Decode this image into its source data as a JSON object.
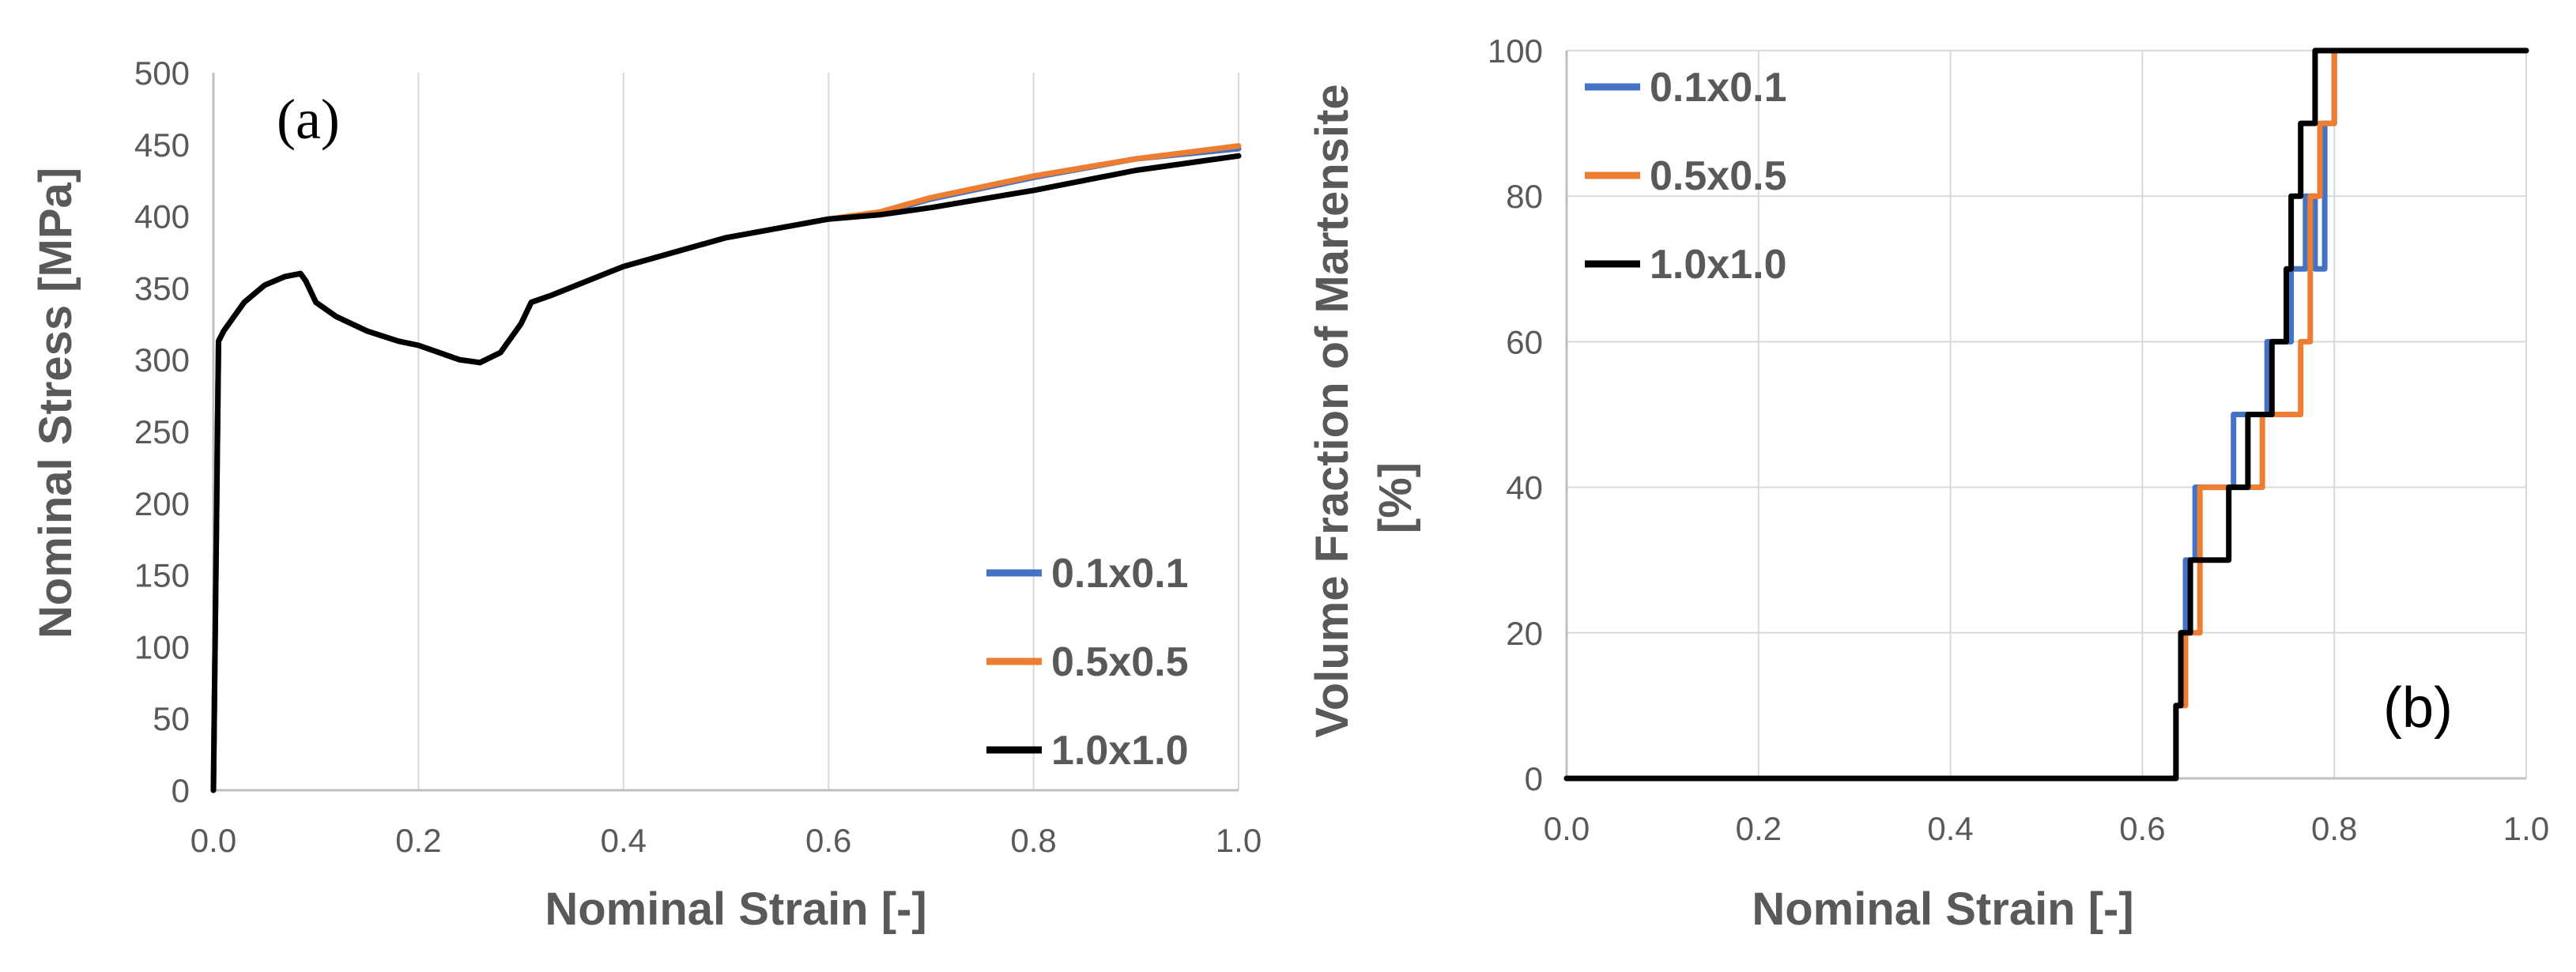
{
  "chart_data": [
    {
      "type": "line",
      "panel_label": "(a)",
      "xlabel": "Nominal Strain [-]",
      "ylabel": "Nominal Stress [MPa]",
      "xlim": [
        0,
        1.0
      ],
      "ylim": [
        0,
        500
      ],
      "xticks": [
        0,
        0.2,
        0.4,
        0.6,
        0.8,
        1.0
      ],
      "xtick_labels": [
        "0.0",
        "0.2",
        "0.4",
        "0.6",
        "0.8",
        "1.0"
      ],
      "yticks": [
        0,
        50,
        100,
        150,
        200,
        250,
        300,
        350,
        400,
        450,
        500
      ],
      "ytick_labels": [
        "0",
        "50",
        "100",
        "150",
        "200",
        "250",
        "300",
        "350",
        "400",
        "450",
        "500"
      ],
      "grid": "vertical",
      "legend_position": "bottom-right",
      "series": [
        {
          "name": "0.1x0.1",
          "color": "#4472c4",
          "x": [
            0,
            0.005,
            0.01,
            0.03,
            0.05,
            0.07,
            0.085,
            0.09,
            0.1,
            0.12,
            0.15,
            0.18,
            0.2,
            0.22,
            0.24,
            0.26,
            0.28,
            0.3,
            0.31,
            0.33,
            0.4,
            0.5,
            0.6,
            0.65,
            0.7,
            0.8,
            0.9,
            1.0
          ],
          "y": [
            0,
            313,
            320,
            340,
            352,
            358,
            360,
            355,
            340,
            330,
            320,
            313,
            310,
            305,
            300,
            298,
            305,
            325,
            340,
            345,
            365,
            385,
            398,
            402,
            412,
            427,
            440,
            447
          ]
        },
        {
          "name": "0.5x0.5",
          "color": "#ed7d31",
          "x": [
            0,
            0.005,
            0.01,
            0.03,
            0.05,
            0.07,
            0.085,
            0.09,
            0.1,
            0.12,
            0.15,
            0.18,
            0.2,
            0.22,
            0.24,
            0.26,
            0.28,
            0.3,
            0.31,
            0.33,
            0.4,
            0.5,
            0.6,
            0.65,
            0.7,
            0.8,
            0.9,
            1.0
          ],
          "y": [
            0,
            313,
            320,
            340,
            352,
            358,
            360,
            355,
            340,
            330,
            320,
            313,
            310,
            305,
            300,
            298,
            305,
            325,
            340,
            345,
            365,
            385,
            398,
            403,
            413,
            428,
            440,
            449
          ]
        },
        {
          "name": "1.0x1.0",
          "color": "#000000",
          "x": [
            0,
            0.005,
            0.01,
            0.03,
            0.05,
            0.07,
            0.085,
            0.09,
            0.1,
            0.12,
            0.15,
            0.18,
            0.2,
            0.22,
            0.24,
            0.26,
            0.28,
            0.3,
            0.31,
            0.33,
            0.4,
            0.5,
            0.6,
            0.65,
            0.7,
            0.8,
            0.9,
            1.0
          ],
          "y": [
            0,
            313,
            320,
            340,
            352,
            358,
            360,
            355,
            340,
            330,
            320,
            313,
            310,
            305,
            300,
            298,
            305,
            325,
            340,
            345,
            365,
            385,
            398,
            401,
            406,
            418,
            432,
            442
          ]
        }
      ]
    },
    {
      "type": "line",
      "panel_label": "(b)",
      "xlabel": "Nominal Strain [-]",
      "ylabel": "Volume Fraction of Martensite [%]",
      "ylabel_lines": [
        "Volume Fraction of Martensite",
        "[%]"
      ],
      "xlim": [
        0,
        1.0
      ],
      "ylim": [
        0,
        100
      ],
      "xticks": [
        0,
        0.2,
        0.4,
        0.6,
        0.8,
        1.0
      ],
      "xtick_labels": [
        "0.0",
        "0.2",
        "0.4",
        "0.6",
        "0.8",
        "1.0"
      ],
      "yticks": [
        0,
        20,
        40,
        60,
        80,
        100
      ],
      "ytick_labels": [
        "0",
        "20",
        "40",
        "60",
        "80",
        "100"
      ],
      "grid": "both",
      "legend_position": "top-left",
      "series": [
        {
          "name": "0.1x0.1",
          "color": "#4472c4",
          "x": [
            0,
            0.635,
            0.635,
            0.64,
            0.64,
            0.645,
            0.645,
            0.655,
            0.655,
            0.665,
            0.665,
            0.695,
            0.695,
            0.71,
            0.71,
            0.73,
            0.73,
            0.755,
            0.755,
            0.77,
            0.77,
            0.78,
            0.78,
            0.79,
            0.79,
            0.8,
            0.8,
            1.0
          ],
          "y": [
            0,
            0,
            10,
            10,
            20,
            20,
            30,
            30,
            40,
            40,
            40,
            40,
            50,
            50,
            50,
            50,
            60,
            60,
            70,
            70,
            80,
            80,
            70,
            70,
            90,
            90,
            100,
            100
          ]
        },
        {
          "name": "0.5x0.5",
          "color": "#ed7d31",
          "x": [
            0,
            0.635,
            0.635,
            0.645,
            0.645,
            0.66,
            0.66,
            0.675,
            0.675,
            0.705,
            0.705,
            0.725,
            0.725,
            0.745,
            0.745,
            0.765,
            0.765,
            0.775,
            0.775,
            0.785,
            0.785,
            0.79,
            0.79,
            0.8,
            0.8,
            1.0
          ],
          "y": [
            0,
            0,
            10,
            10,
            20,
            20,
            40,
            40,
            40,
            40,
            40,
            40,
            50,
            50,
            50,
            50,
            60,
            60,
            80,
            80,
            90,
            90,
            90,
            90,
            100,
            100
          ]
        },
        {
          "name": "1.0x1.0",
          "color": "#000000",
          "x": [
            0,
            0.635,
            0.635,
            0.64,
            0.64,
            0.65,
            0.65,
            0.675,
            0.675,
            0.69,
            0.69,
            0.7,
            0.7,
            0.71,
            0.71,
            0.72,
            0.72,
            0.735,
            0.735,
            0.75,
            0.75,
            0.755,
            0.755,
            0.765,
            0.765,
            0.78,
            0.78,
            0.795,
            0.795,
            1.0
          ],
          "y": [
            0,
            0,
            10,
            10,
            20,
            20,
            30,
            30,
            30,
            30,
            40,
            40,
            40,
            40,
            50,
            50,
            50,
            50,
            60,
            60,
            70,
            70,
            80,
            80,
            90,
            90,
            100,
            100,
            100,
            100
          ]
        }
      ]
    }
  ]
}
